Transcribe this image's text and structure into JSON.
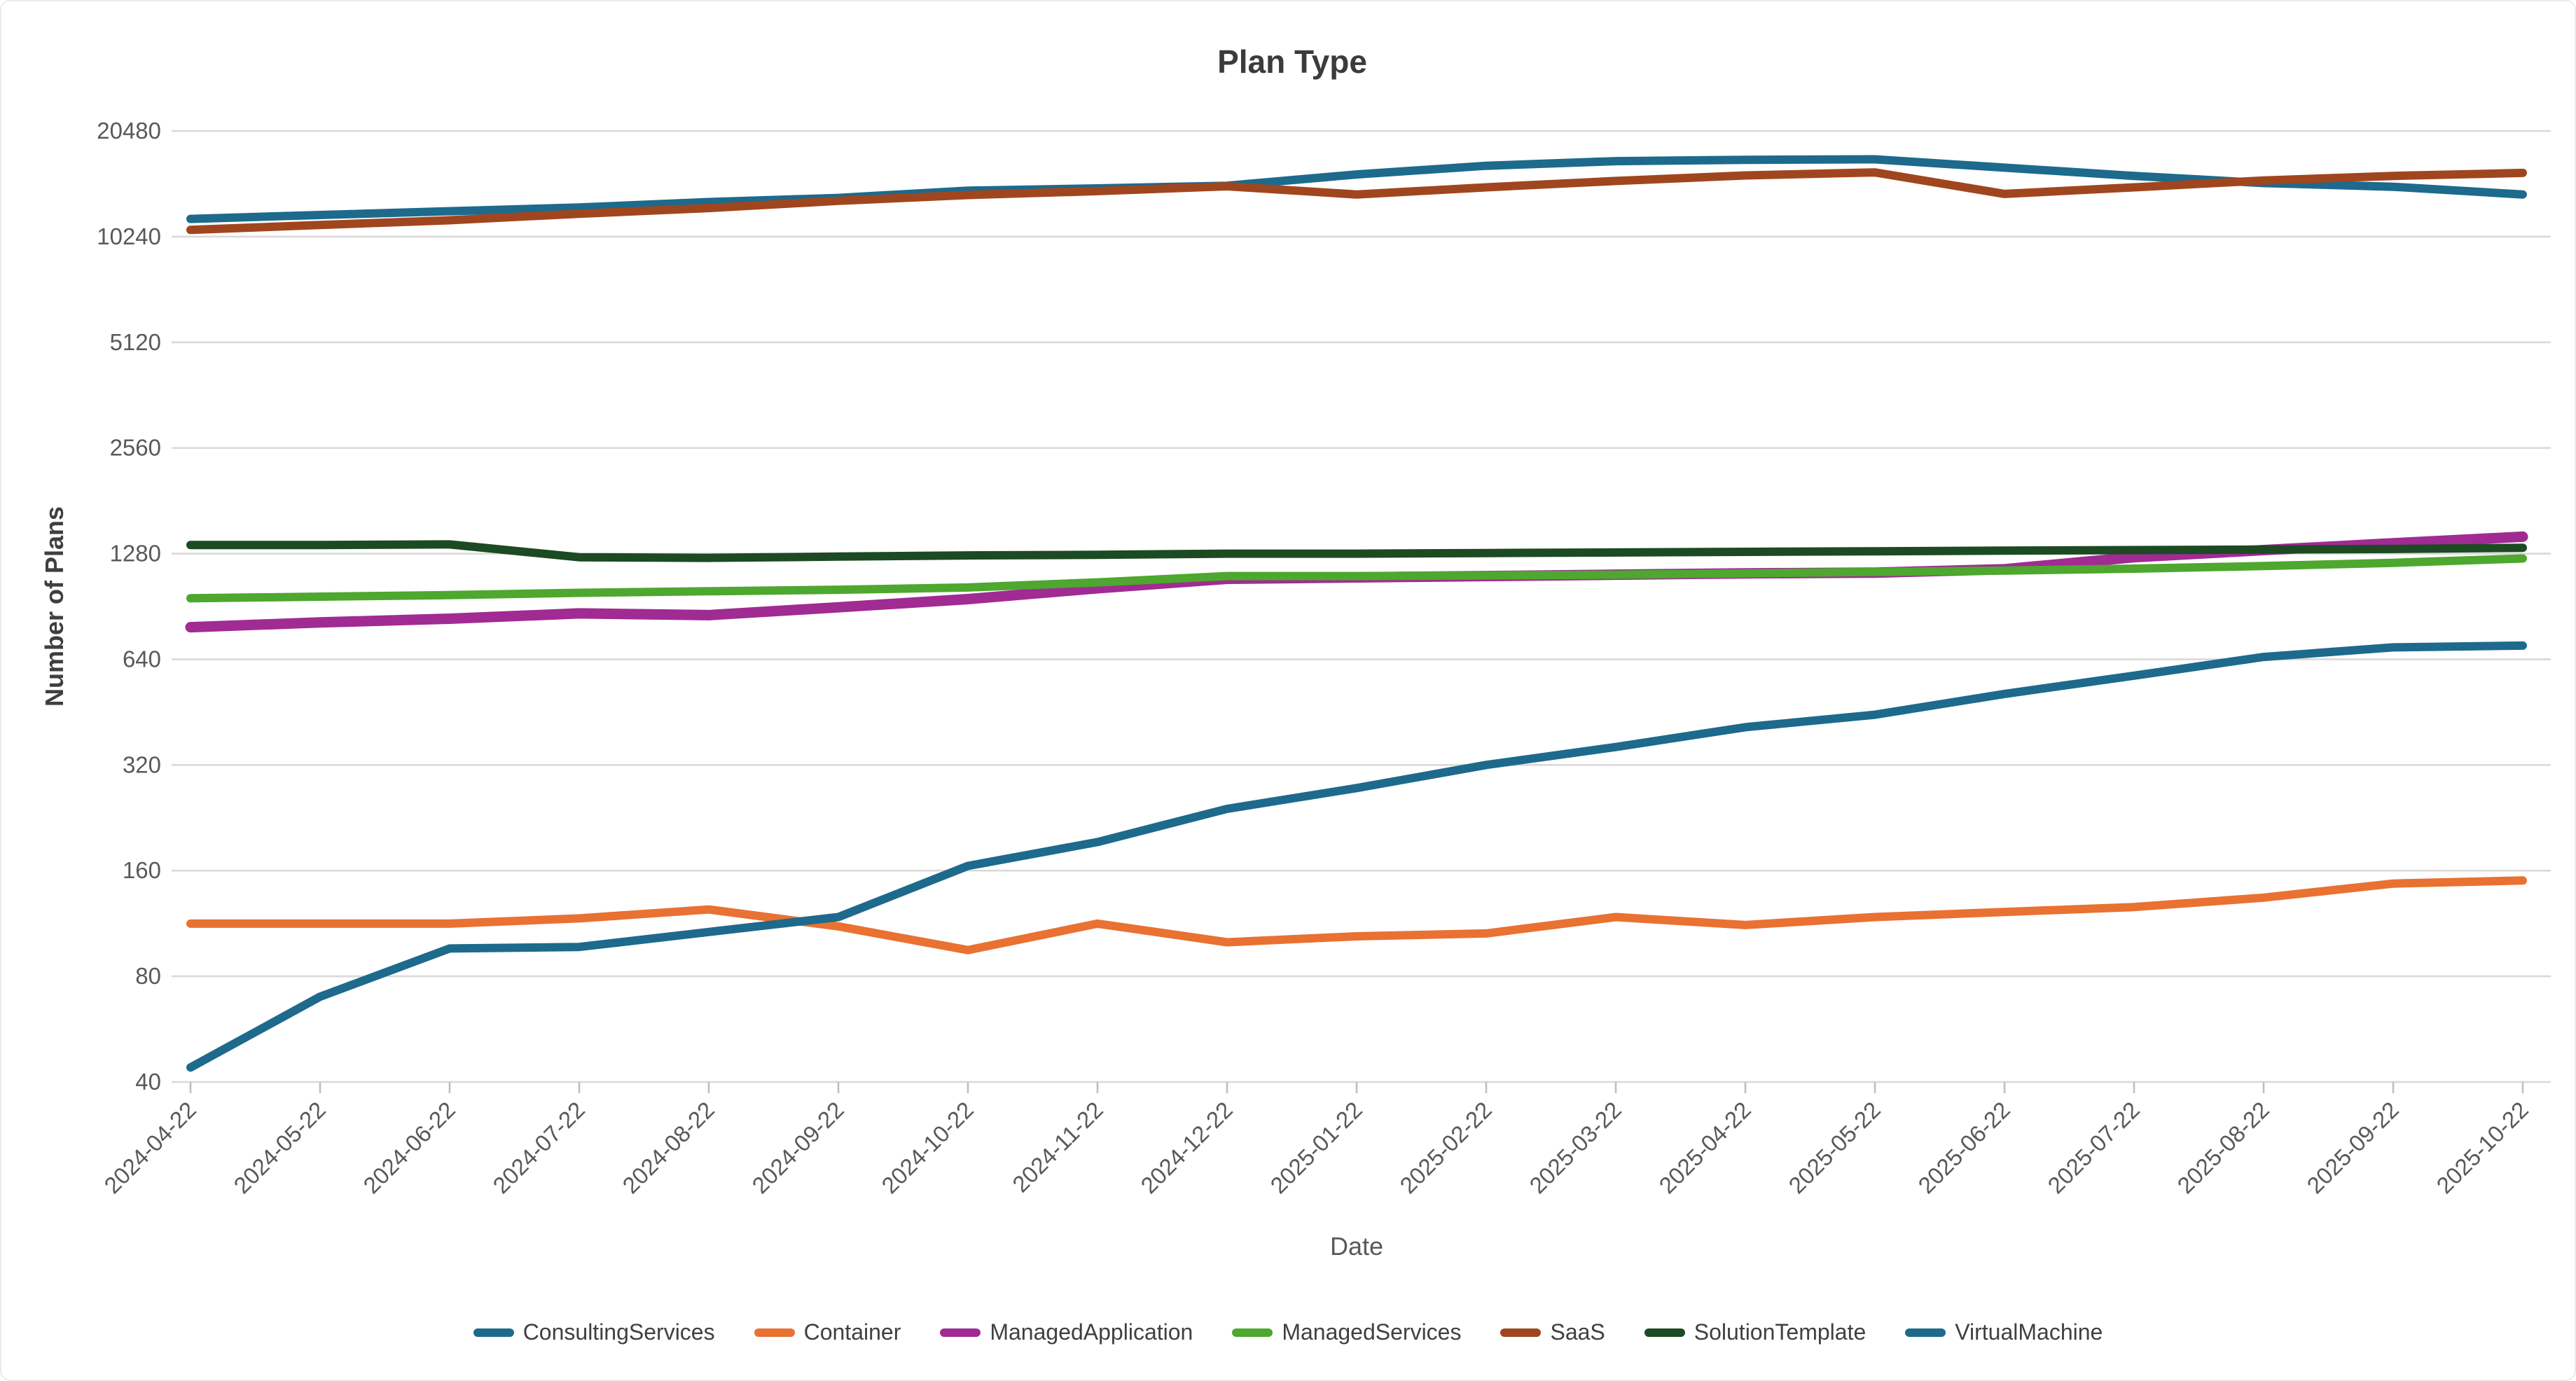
{
  "chart_data": {
    "type": "line",
    "title": "Plan Type",
    "xlabel": "Date",
    "ylabel": "Number of Plans",
    "y_scale": "log2",
    "ylim": [
      40,
      20480
    ],
    "yticks": [
      40,
      80,
      160,
      320,
      640,
      1280,
      2560,
      5120,
      10240,
      20480
    ],
    "grid": true,
    "legend_position": "bottom",
    "x": [
      "2024-04-22",
      "2024-05-22",
      "2024-06-22",
      "2024-07-22",
      "2024-08-22",
      "2024-09-22",
      "2024-10-22",
      "2024-11-22",
      "2024-12-22",
      "2025-01-22",
      "2025-02-22",
      "2025-03-22",
      "2025-04-22",
      "2025-05-22",
      "2025-06-22",
      "2025-07-22",
      "2025-08-22",
      "2025-09-22",
      "2025-10-22"
    ],
    "series": [
      {
        "name": "ConsultingServices",
        "color": "#1D6A8C",
        "values": [
          11500,
          11800,
          12100,
          12400,
          12850,
          13200,
          13850,
          14050,
          14300,
          15400,
          16300,
          16800,
          16950,
          17000,
          16100,
          15250,
          14550,
          14200,
          13500
        ]
      },
      {
        "name": "Container",
        "color": "#E97132",
        "values": [
          113,
          113,
          113,
          117,
          124,
          111,
          95,
          113,
          100,
          104,
          106,
          118,
          112,
          118,
          122,
          126,
          134,
          147,
          150
        ]
      },
      {
        "name": "ManagedApplication",
        "color": "#A02B93",
        "values": [
          790,
          815,
          835,
          865,
          855,
          900,
          950,
          1020,
          1085,
          1095,
          1105,
          1115,
          1125,
          1130,
          1155,
          1250,
          1310,
          1370,
          1430
        ]
      },
      {
        "name": "ManagedServices",
        "color": "#4EA72E",
        "values": [
          955,
          965,
          975,
          990,
          1000,
          1010,
          1025,
          1060,
          1105,
          1105,
          1110,
          1115,
          1125,
          1135,
          1145,
          1160,
          1180,
          1205,
          1240
        ]
      },
      {
        "name": "SaaS",
        "color": "#A0461F",
        "values": [
          10700,
          11050,
          11400,
          11900,
          12350,
          12950,
          13450,
          13800,
          14250,
          13500,
          14150,
          14750,
          15300,
          15600,
          13550,
          14150,
          14800,
          15250,
          15550
        ]
      },
      {
        "name": "SolutionTemplate",
        "color": "#1C4A23",
        "values": [
          1355,
          1355,
          1360,
          1250,
          1245,
          1255,
          1265,
          1270,
          1280,
          1280,
          1285,
          1290,
          1295,
          1300,
          1305,
          1310,
          1315,
          1320,
          1330
        ]
      },
      {
        "name": "VirtualMachine",
        "color": "#1D6A8C",
        "values": [
          44,
          70,
          96,
          97,
          107,
          118,
          165,
          193,
          240,
          275,
          320,
          360,
          410,
          445,
          510,
          575,
          650,
          692,
          700
        ]
      }
    ]
  },
  "colors": {
    "gridline": "#D9D9D9",
    "axis_line": "#D9D9D9",
    "tick_mark": "#BFBFBF",
    "tick_label": "#595959",
    "title": "#3B3B3B",
    "axis_title": "#3F3F3F",
    "legend_text": "#404040",
    "background": "#FFFFFF"
  }
}
